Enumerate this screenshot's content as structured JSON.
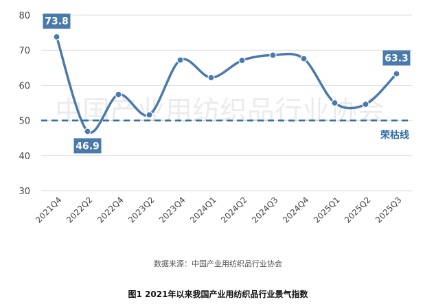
{
  "watermark": "中国产业用纺织品行业协会",
  "source_note": "数据来源：中国产业用纺织品行业协会",
  "caption": "图1  2021年以来我国产业用纺织品行业景气指数",
  "chart_data": {
    "type": "line",
    "categories": [
      "2021Q4",
      "2022Q2",
      "2022Q4",
      "2023Q2",
      "2023Q4",
      "2024Q1",
      "2024Q2",
      "2024Q3",
      "2024Q4",
      "2025Q1",
      "2025Q2",
      "2025Q3"
    ],
    "values": [
      73.8,
      46.9,
      57.4,
      51.6,
      67.2,
      62.2,
      67.1,
      68.6,
      67.6,
      55.0,
      54.6,
      63.3
    ],
    "labeled_points": [
      {
        "index": 0,
        "text": "73.8"
      },
      {
        "index": 1,
        "text": "46.9"
      },
      {
        "index": 11,
        "text": "63.3"
      }
    ],
    "yticks": [
      "30",
      "40",
      "50",
      "60",
      "70",
      "80"
    ],
    "ylim": [
      30,
      80
    ],
    "grid": true,
    "reference_line": {
      "value": 50,
      "label": "荣枯线"
    },
    "colors": {
      "line": "#4a79ac",
      "reference": "#2f6ea4",
      "grid": "#dddddd",
      "label_bg": "#4a79ac"
    }
  }
}
